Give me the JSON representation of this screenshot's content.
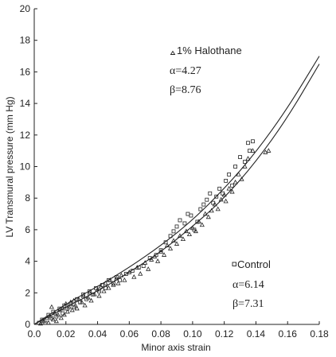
{
  "chart_data": {
    "type": "scatter",
    "xlabel": "Minor axis strain",
    "ylabel": "LV Transmural pressure (mm Hg)",
    "xlim": [
      0.0,
      0.18
    ],
    "ylim": [
      0,
      20
    ],
    "x_ticks": [
      "0.0",
      "0.02",
      "0.04",
      "0.06",
      "0.08",
      "0.10",
      "0.12",
      "0.14",
      "0.16",
      "0.18"
    ],
    "y_ticks": [
      "0",
      "2",
      "4",
      "6",
      "8",
      "10",
      "12",
      "14",
      "16",
      "18",
      "20"
    ],
    "grid": false,
    "series": [
      {
        "name": "1% Halothane",
        "marker": "triangle",
        "color": "#222222",
        "alpha": "α=4.27",
        "beta": "β=8.76",
        "fit": {
          "alpha": 4.27,
          "beta": 8.76
        },
        "points": [
          [
            0.004,
            0.05
          ],
          [
            0.006,
            0.2
          ],
          [
            0.008,
            0.4
          ],
          [
            0.009,
            0.1
          ],
          [
            0.01,
            0.5
          ],
          [
            0.011,
            1.1
          ],
          [
            0.012,
            0.3
          ],
          [
            0.013,
            0.7
          ],
          [
            0.014,
            0.2
          ],
          [
            0.015,
            0.6
          ],
          [
            0.016,
            0.9
          ],
          [
            0.017,
            0.4
          ],
          [
            0.018,
            1.0
          ],
          [
            0.019,
            0.6
          ],
          [
            0.02,
            1.3
          ],
          [
            0.021,
            0.8
          ],
          [
            0.022,
            1.1
          ],
          [
            0.023,
            1.4
          ],
          [
            0.024,
            0.9
          ],
          [
            0.025,
            1.5
          ],
          [
            0.026,
            1.2
          ],
          [
            0.027,
            1.0
          ],
          [
            0.028,
            1.6
          ],
          [
            0.03,
            1.4
          ],
          [
            0.031,
            1.8
          ],
          [
            0.032,
            1.2
          ],
          [
            0.034,
            1.7
          ],
          [
            0.035,
            2.0
          ],
          [
            0.036,
            1.5
          ],
          [
            0.038,
            1.9
          ],
          [
            0.04,
            2.2
          ],
          [
            0.041,
            1.8
          ],
          [
            0.042,
            2.4
          ],
          [
            0.044,
            2.1
          ],
          [
            0.045,
            2.6
          ],
          [
            0.047,
            2.3
          ],
          [
            0.048,
            2.8
          ],
          [
            0.05,
            2.5
          ],
          [
            0.052,
            2.9
          ],
          [
            0.053,
            2.6
          ],
          [
            0.055,
            3.1
          ],
          [
            0.057,
            2.8
          ],
          [
            0.06,
            3.3
          ],
          [
            0.063,
            3.0
          ],
          [
            0.065,
            3.6
          ],
          [
            0.067,
            3.2
          ],
          [
            0.07,
            3.9
          ],
          [
            0.072,
            3.5
          ],
          [
            0.074,
            4.1
          ],
          [
            0.076,
            4.3
          ],
          [
            0.078,
            4.0
          ],
          [
            0.08,
            4.6
          ],
          [
            0.082,
            4.4
          ],
          [
            0.084,
            5.0
          ],
          [
            0.086,
            4.8
          ],
          [
            0.088,
            5.3
          ],
          [
            0.09,
            5.1
          ],
          [
            0.092,
            5.6
          ],
          [
            0.094,
            5.4
          ],
          [
            0.096,
            5.9
          ],
          [
            0.098,
            5.7
          ],
          [
            0.1,
            6.1
          ],
          [
            0.102,
            5.9
          ],
          [
            0.104,
            6.5
          ],
          [
            0.106,
            6.3
          ],
          [
            0.108,
            7.0
          ],
          [
            0.11,
            6.8
          ],
          [
            0.112,
            7.2
          ],
          [
            0.114,
            7.6
          ],
          [
            0.116,
            7.3
          ],
          [
            0.118,
            7.9
          ],
          [
            0.12,
            8.2
          ],
          [
            0.121,
            7.8
          ],
          [
            0.123,
            8.6
          ],
          [
            0.125,
            8.4
          ],
          [
            0.127,
            9.0
          ],
          [
            0.129,
            9.5
          ],
          [
            0.131,
            9.2
          ],
          [
            0.133,
            10.0
          ],
          [
            0.135,
            10.5
          ],
          [
            0.138,
            11.0
          ],
          [
            0.146,
            10.9
          ],
          [
            0.148,
            11.0
          ]
        ]
      },
      {
        "name": "Control",
        "marker": "square",
        "color": "#222222",
        "alpha": "α=6.14",
        "beta": "β=7.31",
        "fit": {
          "alpha": 6.14,
          "beta": 7.31
        },
        "points": [
          [
            0.003,
            0.1
          ],
          [
            0.005,
            0.3
          ],
          [
            0.007,
            0.1
          ],
          [
            0.009,
            0.6
          ],
          [
            0.011,
            0.4
          ],
          [
            0.012,
            0.8
          ],
          [
            0.014,
            0.5
          ],
          [
            0.016,
            1.0
          ],
          [
            0.018,
            0.7
          ],
          [
            0.019,
            1.2
          ],
          [
            0.021,
            1.0
          ],
          [
            0.023,
            1.3
          ],
          [
            0.025,
            1.1
          ],
          [
            0.027,
            1.6
          ],
          [
            0.029,
            1.4
          ],
          [
            0.031,
            1.9
          ],
          [
            0.033,
            1.6
          ],
          [
            0.035,
            2.1
          ],
          [
            0.037,
            1.9
          ],
          [
            0.039,
            2.3
          ],
          [
            0.041,
            2.1
          ],
          [
            0.043,
            2.5
          ],
          [
            0.045,
            2.3
          ],
          [
            0.047,
            2.8
          ],
          [
            0.05,
            2.6
          ],
          [
            0.052,
            3.0
          ],
          [
            0.054,
            2.8
          ],
          [
            0.058,
            3.2
          ],
          [
            0.062,
            3.4
          ],
          [
            0.066,
            3.6
          ],
          [
            0.069,
            3.7
          ],
          [
            0.073,
            4.2
          ],
          [
            0.077,
            4.4
          ],
          [
            0.08,
            4.7
          ],
          [
            0.083,
            5.2
          ],
          [
            0.086,
            5.6
          ],
          [
            0.088,
            5.9
          ],
          [
            0.09,
            6.2
          ],
          [
            0.092,
            6.6
          ],
          [
            0.095,
            6.4
          ],
          [
            0.097,
            7.0
          ],
          [
            0.099,
            6.9
          ],
          [
            0.101,
            6.0
          ],
          [
            0.103,
            6.5
          ],
          [
            0.105,
            7.3
          ],
          [
            0.107,
            7.6
          ],
          [
            0.109,
            7.9
          ],
          [
            0.111,
            8.3
          ],
          [
            0.113,
            7.7
          ],
          [
            0.115,
            8.1
          ],
          [
            0.117,
            8.6
          ],
          [
            0.119,
            8.3
          ],
          [
            0.121,
            9.1
          ],
          [
            0.123,
            9.5
          ],
          [
            0.125,
            8.8
          ],
          [
            0.127,
            10.0
          ],
          [
            0.13,
            10.6
          ],
          [
            0.133,
            10.3
          ],
          [
            0.135,
            11.5
          ],
          [
            0.136,
            11.0
          ],
          [
            0.138,
            11.6
          ]
        ]
      }
    ],
    "curves": [
      {
        "name": "upper",
        "points": [
          [
            0.0,
            0.0
          ],
          [
            0.02,
            1.3
          ],
          [
            0.04,
            2.4
          ],
          [
            0.06,
            3.6
          ],
          [
            0.08,
            5.0
          ],
          [
            0.1,
            6.6
          ],
          [
            0.12,
            8.6
          ],
          [
            0.14,
            10.9
          ],
          [
            0.16,
            13.7
          ],
          [
            0.18,
            17.0
          ]
        ]
      },
      {
        "name": "lower",
        "points": [
          [
            0.0,
            0.0
          ],
          [
            0.02,
            1.1
          ],
          [
            0.04,
            2.1
          ],
          [
            0.06,
            3.3
          ],
          [
            0.08,
            4.6
          ],
          [
            0.1,
            6.2
          ],
          [
            0.12,
            8.0
          ],
          [
            0.14,
            10.3
          ],
          [
            0.16,
            13.1
          ],
          [
            0.18,
            16.5
          ]
        ]
      }
    ]
  }
}
